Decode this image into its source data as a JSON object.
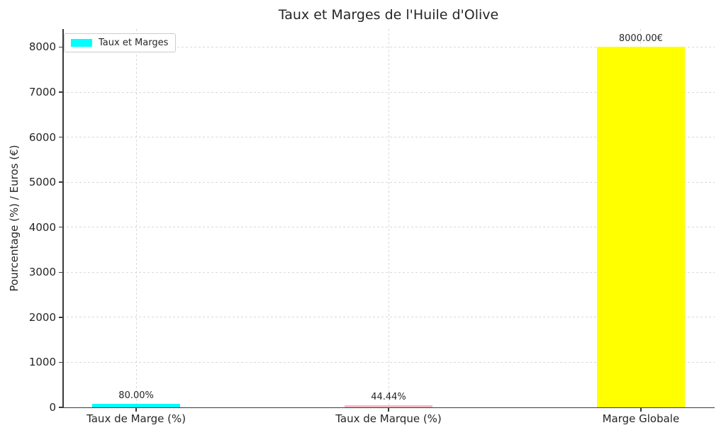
{
  "figure": {
    "title": "Taux et Marges de l'Huile d'Olive",
    "ylabel": "Pourcentage (%) / Euros (€)"
  },
  "legend": {
    "label": "Taux et Marges",
    "swatch_color": "#00ffff"
  },
  "chart_data": {
    "type": "bar",
    "title": "Taux et Marges de l'Huile d'Olive",
    "xlabel": "",
    "ylabel": "Pourcentage (%) / Euros (€)",
    "categories": [
      "Taux de Marge (%)",
      "Taux de Marque (%)",
      "Marge Globale"
    ],
    "values": [
      80.0,
      44.44,
      8000.0
    ],
    "bar_labels": [
      "80.00%",
      "44.44%",
      "8000.00€"
    ],
    "bar_colors": [
      "#00ffff",
      "#ffb6c1",
      "#ffff00"
    ],
    "bar_width_units": 0.35,
    "yticks": [
      0,
      1000,
      2000,
      3000,
      4000,
      5000,
      6000,
      7000,
      8000
    ],
    "ytick_labels": [
      "0",
      "1000",
      "2000",
      "3000",
      "4000",
      "5000",
      "6000",
      "7000",
      "8000"
    ],
    "ylim": [
      0,
      8400
    ],
    "xlim": [
      -0.2925,
      2.2925
    ],
    "grid": {
      "horizontal": true,
      "vertical": true,
      "style": "dashed"
    },
    "legend": {
      "position": "upper left",
      "entries": [
        {
          "label": "Taux et Marges",
          "color": "#00ffff"
        }
      ]
    }
  }
}
